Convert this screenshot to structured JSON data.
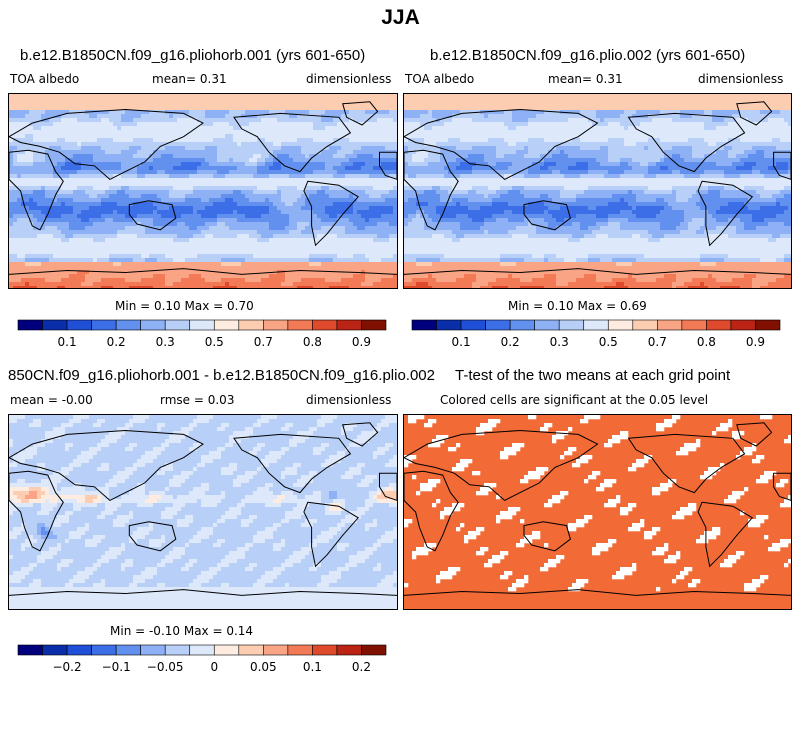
{
  "figure": {
    "title": "JJA"
  },
  "colors": {
    "albedo_levels": [
      "#00007f",
      "#0a2daa",
      "#1f4fd6",
      "#3c6ee8",
      "#6190ef",
      "#8db1f4",
      "#b8d0f7",
      "#dde9fb",
      "#ffece0",
      "#fdcdb2",
      "#f9a585",
      "#f27a57",
      "#e04a2c",
      "#bb2414",
      "#801000"
    ],
    "diff_levels": [
      "#00007f",
      "#0a2daa",
      "#1f4fd6",
      "#3c6ee8",
      "#6190ef",
      "#8db1f4",
      "#b8d0f7",
      "#dde9fb",
      "#ffece0",
      "#fdcdb2",
      "#f9a585",
      "#f27a57",
      "#e04a2c",
      "#bb2414",
      "#801000"
    ],
    "significant": "#f26a36",
    "land_outline": "#000000"
  },
  "panels": {
    "p1": {
      "title": "b.e12.B1850CN.f09_g16.pliohorb.001 (yrs 601-650)",
      "left_label": "TOA albedo",
      "center_label": "mean=    0.31",
      "right_label": "dimensionless",
      "stats": "Min =    0.10  Max =    0.70"
    },
    "p2": {
      "title": "b.e12.B1850CN.f09_g16.plio.002 (yrs 601-650)",
      "left_label": "TOA albedo",
      "center_label": "mean=    0.31",
      "right_label": "dimensionless",
      "stats": "Min =    0.10  Max =    0.69"
    },
    "p3": {
      "title": "850CN.f09_g16.pliohorb.001 - b.e12.B1850CN.f09_g16.plio.002",
      "left_label": "mean =   -0.00",
      "center_label": "rmse =    0.03",
      "right_label": "dimensionless",
      "stats": "Min =  -0.10  Max =    0.14"
    },
    "p4": {
      "title": "T-test of the two means at each grid point",
      "subtitle": "Colored cells are significant at the 0.05 level"
    }
  },
  "chart_data": [
    {
      "type": "heatmap",
      "title": "b.e12.B1850CN.f09_g16.pliohorb.001 (yrs 601-650)",
      "variable": "TOA albedo",
      "units": "dimensionless",
      "mean": 0.31,
      "min": 0.1,
      "max": 0.7,
      "colorbar_ticks": [
        "0.1",
        "0.2",
        "0.3",
        "0.5",
        "0.7",
        "0.8",
        "0.9"
      ]
    },
    {
      "type": "heatmap",
      "title": "b.e12.B1850CN.f09_g16.plio.002 (yrs 601-650)",
      "variable": "TOA albedo",
      "units": "dimensionless",
      "mean": 0.31,
      "min": 0.1,
      "max": 0.69,
      "colorbar_ticks": [
        "0.1",
        "0.2",
        "0.3",
        "0.5",
        "0.7",
        "0.8",
        "0.9"
      ]
    },
    {
      "type": "heatmap",
      "title": "850CN.f09_g16.pliohorb.001 - b.e12.B1850CN.f09_g16.plio.002",
      "units": "dimensionless",
      "mean": -0.0,
      "rmse": 0.03,
      "min": -0.1,
      "max": 0.14,
      "colorbar_ticks": [
        "-0.2",
        "-0.1",
        "-0.05",
        "0",
        "0.05",
        "0.1",
        "0.2"
      ]
    },
    {
      "type": "heatmap",
      "title": "T-test of the two means at each grid point",
      "subtitle": "Colored cells are significant at the 0.05 level",
      "significance_level": 0.05
    }
  ]
}
